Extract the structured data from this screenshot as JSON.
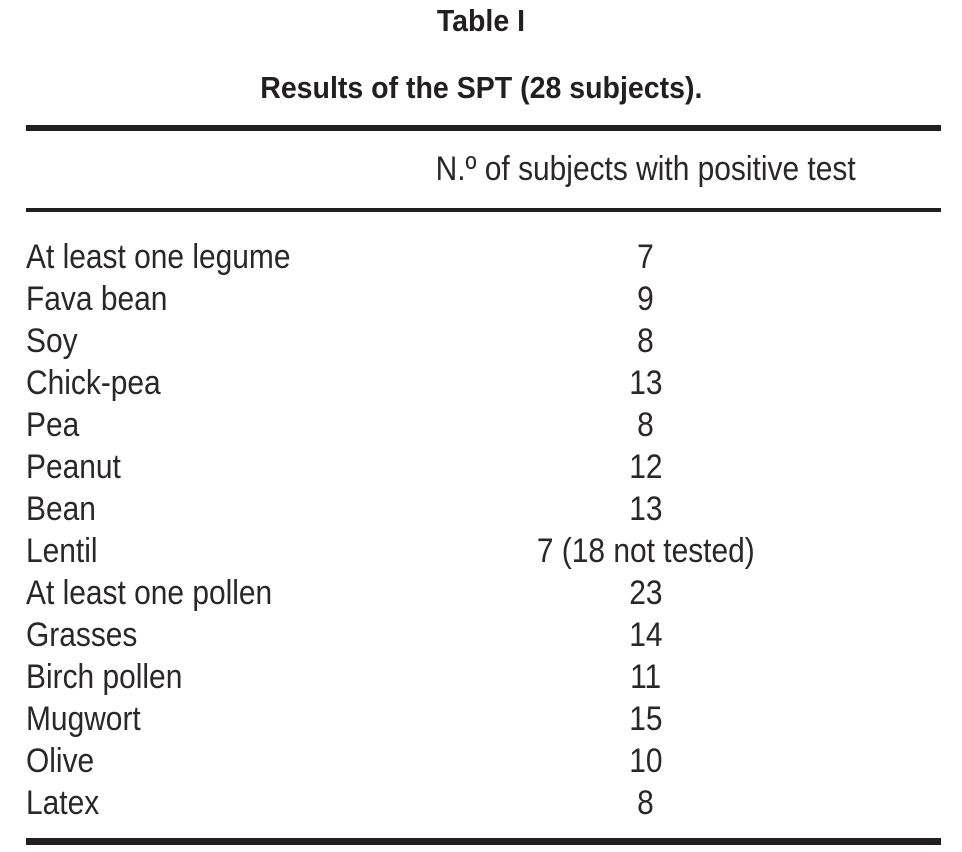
{
  "page": {
    "background": "#ffffff",
    "text_color": "#2b2727",
    "heading_color": "#231f20",
    "rule_color": "#231f20"
  },
  "table": {
    "title": "Table I",
    "subtitle": "Results of the SPT (28 subjects).",
    "column_header": "N.º of subjects with positive test",
    "rows": [
      {
        "label": "At least one legume",
        "value": "7"
      },
      {
        "label": "Fava bean",
        "value": "9"
      },
      {
        "label": "Soy",
        "value": "8"
      },
      {
        "label": "Chick-pea",
        "value": "13"
      },
      {
        "label": "Pea",
        "value": "8"
      },
      {
        "label": "Peanut",
        "value": "12"
      },
      {
        "label": "Bean",
        "value": "13"
      },
      {
        "label": "Lentil",
        "value": "7 (18 not tested)"
      },
      {
        "label": "At least one pollen",
        "value": "23"
      },
      {
        "label": "Grasses",
        "value": "14"
      },
      {
        "label": "Birch pollen",
        "value": "11"
      },
      {
        "label": "Mugwort",
        "value": "15"
      },
      {
        "label": "Olive",
        "value": "10"
      },
      {
        "label": "Latex",
        "value": "8"
      }
    ]
  },
  "chart_data": {
    "type": "table",
    "title": "Table I",
    "subtitle": "Results of the SPT (28 subjects).",
    "columns": [
      "",
      "N.º of subjects with positive test"
    ],
    "categories": [
      "At least one legume",
      "Fava bean",
      "Soy",
      "Chick-pea",
      "Pea",
      "Peanut",
      "Bean",
      "Lentil",
      "At least one pollen",
      "Grasses",
      "Birch pollen",
      "Mugwort",
      "Olive",
      "Latex"
    ],
    "values": [
      7,
      9,
      8,
      13,
      8,
      12,
      13,
      7,
      23,
      14,
      11,
      15,
      10,
      8
    ],
    "notes": {
      "Lentil": "18 not tested"
    }
  }
}
